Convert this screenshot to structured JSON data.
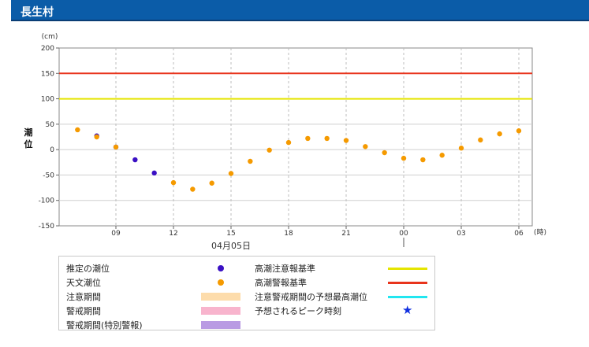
{
  "header": {
    "title": "長生村"
  },
  "chart_data": {
    "type": "scatter",
    "ylabel": "潮位",
    "yunit": "(cm)",
    "xunit": "(時)",
    "ylim": [
      -150,
      200
    ],
    "yticks": [
      200,
      150,
      100,
      50,
      0,
      -50,
      -100,
      -150
    ],
    "xticks": [
      {
        "hour": 9,
        "label": "09"
      },
      {
        "hour": 12,
        "label": "12"
      },
      {
        "hour": 15,
        "label": "15"
      },
      {
        "hour": 18,
        "label": "18"
      },
      {
        "hour": 21,
        "label": "21"
      },
      {
        "hour": 24,
        "label": "00"
      },
      {
        "hour": 27,
        "label": "03"
      },
      {
        "hour": 30,
        "label": "06"
      }
    ],
    "date_label": "04月05日",
    "grid": true,
    "reference_lines": [
      {
        "name": "高潮注意報基準",
        "value": 100,
        "color": "#e5e500"
      },
      {
        "name": "高潮警報基準",
        "value": 150,
        "color": "#e8341c"
      }
    ],
    "series": [
      {
        "name": "推定の潮位",
        "color": "#3a10c4",
        "points": [
          {
            "x": 8,
            "y": 27
          },
          {
            "x": 9,
            "y": 5
          },
          {
            "x": 10,
            "y": -20
          },
          {
            "x": 11,
            "y": -46
          }
        ]
      },
      {
        "name": "天文潮位",
        "color": "#f59a00",
        "points": [
          {
            "x": 7,
            "y": 39
          },
          {
            "x": 8,
            "y": 25
          },
          {
            "x": 9,
            "y": 5
          },
          {
            "x": 12,
            "y": -65
          },
          {
            "x": 13,
            "y": -78
          },
          {
            "x": 14,
            "y": -66
          },
          {
            "x": 15,
            "y": -47
          },
          {
            "x": 16,
            "y": -23
          },
          {
            "x": 17,
            "y": -1
          },
          {
            "x": 18,
            "y": 14
          },
          {
            "x": 19,
            "y": 22
          },
          {
            "x": 20,
            "y": 22
          },
          {
            "x": 21,
            "y": 18
          },
          {
            "x": 22,
            "y": 6
          },
          {
            "x": 23,
            "y": -6
          },
          {
            "x": 24,
            "y": -17
          },
          {
            "x": 25,
            "y": -20
          },
          {
            "x": 26,
            "y": -11
          },
          {
            "x": 27,
            "y": 3
          },
          {
            "x": 28,
            "y": 19
          },
          {
            "x": 29,
            "y": 31
          },
          {
            "x": 30,
            "y": 37
          }
        ]
      }
    ]
  },
  "legend": {
    "items": [
      {
        "label": "推定の潮位",
        "kind": "dot",
        "color": "#3a10c4"
      },
      {
        "label": "天文潮位",
        "kind": "dot",
        "color": "#f59a00"
      },
      {
        "label": "注意期間",
        "kind": "band",
        "color": "#fddcab"
      },
      {
        "label": "警戒期間",
        "kind": "band",
        "color": "#f8b4cd"
      },
      {
        "label": "警戒期間(特別警報)",
        "kind": "band",
        "color": "#b99be3"
      },
      {
        "label": "高潮注意報基準",
        "kind": "line",
        "color": "#e5e500"
      },
      {
        "label": "高潮警報基準",
        "kind": "line",
        "color": "#e8341c"
      },
      {
        "label": "注意警戒期間の予想最高潮位",
        "kind": "line",
        "color": "#22e6f0"
      },
      {
        "label": "予想されるピーク時刻",
        "kind": "star",
        "color": "#1030e0"
      }
    ]
  }
}
